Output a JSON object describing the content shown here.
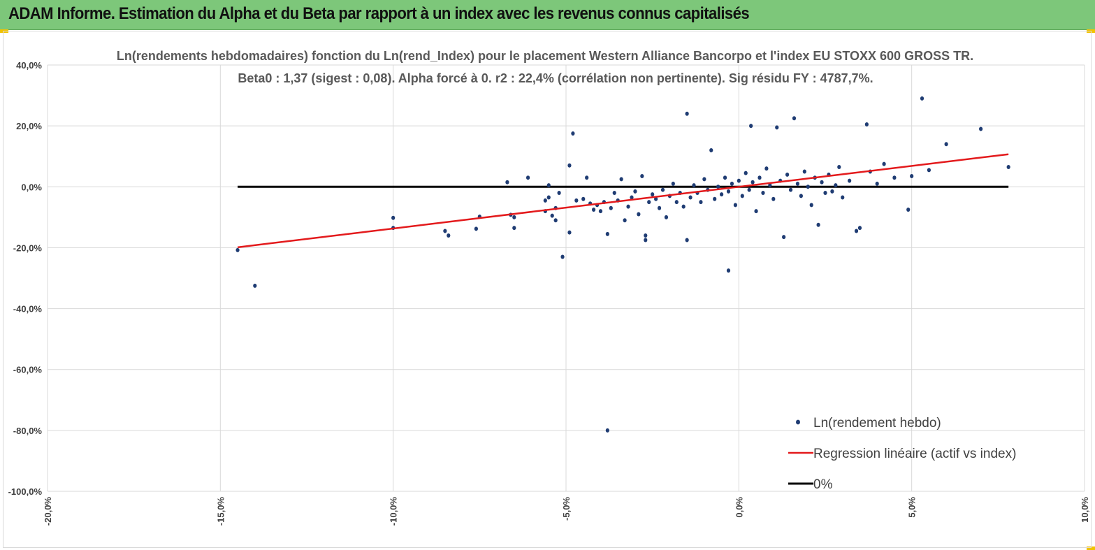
{
  "banner": {
    "title": "ADAM Informe. Estimation du Alpha et du Beta par rapport à un index avec les revenus connus capitalisés"
  },
  "colors": {
    "banner": "#7dc77a",
    "accent_corner": "#f2c200",
    "points": "#1f3c73",
    "regression": "#e31a1c",
    "zero_line": "#000000",
    "grid": "#d9d9d9"
  },
  "chart_data": {
    "type": "scatter",
    "title_line1": "Ln(rendements hebdomadaires) fonction du Ln(rend_Index) pour le placement Western Alliance Bancorpo et l'index EU STOXX 600 GROSS TR.",
    "title_line2": "Beta0 : 1,37 (sigest : 0,08). Alpha forcé à 0. r2 : 22,4% (corrélation non pertinente). Sig résidu FY : 4787,7%.",
    "xlim": [
      -20,
      10
    ],
    "ylim": [
      -100,
      40
    ],
    "x_ticks": [
      "-20,0%",
      "-15,0%",
      "-10,0%",
      "-5,0%",
      "0,0%",
      "5,0%",
      "10,0%"
    ],
    "x_tick_values": [
      -20,
      -15,
      -10,
      -5,
      0,
      5,
      10
    ],
    "y_ticks": [
      "40,0%",
      "20,0%",
      "0,0%",
      "-20,0%",
      "-40,0%",
      "-60,0%",
      "-80,0%",
      "-100,0%"
    ],
    "y_tick_values": [
      40,
      20,
      0,
      -20,
      -40,
      -60,
      -80,
      -100
    ],
    "grid": true,
    "legend_position": "bottom-right",
    "legend": [
      {
        "label": "Ln(rendement hebdo)",
        "kind": "marker"
      },
      {
        "label": "Regression linéaire (actif vs index)",
        "kind": "line-red"
      },
      {
        "label": "0%",
        "kind": "line-black"
      }
    ],
    "regression": {
      "slope": 1.37,
      "x_range": [
        -14.5,
        7.8
      ]
    },
    "zero_line": {
      "x_range": [
        -14.5,
        7.8
      ],
      "y": 0
    },
    "series": [
      {
        "name": "Ln(rendement hebdo)",
        "points": [
          [
            -14.5,
            -20.8
          ],
          [
            -14.0,
            -32.5
          ],
          [
            -10.0,
            -10.2
          ],
          [
            -10.0,
            -13.5
          ],
          [
            -8.5,
            -14.5
          ],
          [
            -8.4,
            -16.0
          ],
          [
            -7.6,
            -13.8
          ],
          [
            -7.5,
            -9.8
          ],
          [
            -6.7,
            1.5
          ],
          [
            -6.6,
            -9.2
          ],
          [
            -6.5,
            -13.5
          ],
          [
            -6.5,
            -10.0
          ],
          [
            -6.1,
            3.0
          ],
          [
            -5.6,
            -8.0
          ],
          [
            -5.6,
            -4.5
          ],
          [
            -5.5,
            -3.5
          ],
          [
            -5.5,
            0.5
          ],
          [
            -5.4,
            -9.5
          ],
          [
            -5.3,
            -11.0
          ],
          [
            -5.3,
            -7.0
          ],
          [
            -5.2,
            -2.0
          ],
          [
            -5.1,
            -23.0
          ],
          [
            -4.9,
            7.0
          ],
          [
            -4.9,
            -15.0
          ],
          [
            -4.8,
            17.5
          ],
          [
            -4.7,
            -4.5
          ],
          [
            -4.5,
            -4.0
          ],
          [
            -4.4,
            3.0
          ],
          [
            -4.3,
            -5.5
          ],
          [
            -4.2,
            -7.5
          ],
          [
            -4.1,
            -6.0
          ],
          [
            -4.0,
            -8.0
          ],
          [
            -3.9,
            -5.0
          ],
          [
            -3.8,
            -15.5
          ],
          [
            -3.8,
            -80.0
          ],
          [
            -3.7,
            -7.0
          ],
          [
            -3.6,
            -2.0
          ],
          [
            -3.5,
            -4.5
          ],
          [
            -3.4,
            2.5
          ],
          [
            -3.3,
            -11.0
          ],
          [
            -3.2,
            -6.5
          ],
          [
            -3.1,
            -3.5
          ],
          [
            -3.0,
            -1.5
          ],
          [
            -2.9,
            -9.0
          ],
          [
            -2.8,
            3.5
          ],
          [
            -2.7,
            -17.5
          ],
          [
            -2.7,
            -16.0
          ],
          [
            -2.6,
            -5.0
          ],
          [
            -2.5,
            -2.5
          ],
          [
            -2.4,
            -4.0
          ],
          [
            -2.3,
            -7.0
          ],
          [
            -2.2,
            -1.0
          ],
          [
            -2.1,
            -10.0
          ],
          [
            -2.0,
            -3.0
          ],
          [
            -1.9,
            1.0
          ],
          [
            -1.8,
            -5.0
          ],
          [
            -1.7,
            -2.0
          ],
          [
            -1.6,
            -6.5
          ],
          [
            -1.5,
            24.0
          ],
          [
            -1.5,
            -17.5
          ],
          [
            -1.4,
            -3.5
          ],
          [
            -1.3,
            0.5
          ],
          [
            -1.2,
            -2.0
          ],
          [
            -1.1,
            -5.0
          ],
          [
            -1.0,
            2.5
          ],
          [
            -0.9,
            -1.0
          ],
          [
            -0.8,
            12.0
          ],
          [
            -0.7,
            -4.0
          ],
          [
            -0.6,
            0.0
          ],
          [
            -0.5,
            -2.5
          ],
          [
            -0.4,
            3.0
          ],
          [
            -0.3,
            -27.5
          ],
          [
            -0.3,
            -1.5
          ],
          [
            -0.2,
            1.0
          ],
          [
            -0.1,
            -6.0
          ],
          [
            0.0,
            2.0
          ],
          [
            0.1,
            -3.0
          ],
          [
            0.2,
            4.5
          ],
          [
            0.3,
            -1.0
          ],
          [
            0.35,
            20.0
          ],
          [
            0.4,
            1.5
          ],
          [
            0.5,
            -8.0
          ],
          [
            0.6,
            3.0
          ],
          [
            0.7,
            -2.0
          ],
          [
            0.8,
            6.0
          ],
          [
            0.9,
            0.5
          ],
          [
            1.0,
            -4.0
          ],
          [
            1.1,
            19.5
          ],
          [
            1.2,
            2.0
          ],
          [
            1.3,
            -16.5
          ],
          [
            1.4,
            4.0
          ],
          [
            1.5,
            -1.0
          ],
          [
            1.6,
            22.5
          ],
          [
            1.7,
            1.0
          ],
          [
            1.8,
            -3.0
          ],
          [
            1.9,
            5.0
          ],
          [
            2.0,
            0.0
          ],
          [
            2.1,
            -6.0
          ],
          [
            2.2,
            3.0
          ],
          [
            2.3,
            -12.5
          ],
          [
            2.4,
            1.5
          ],
          [
            2.5,
            -2.0
          ],
          [
            2.6,
            4.0
          ],
          [
            2.7,
            -1.5
          ],
          [
            2.8,
            0.5
          ],
          [
            2.9,
            6.5
          ],
          [
            3.0,
            -3.5
          ],
          [
            3.2,
            2.0
          ],
          [
            3.4,
            -14.5
          ],
          [
            3.5,
            -13.5
          ],
          [
            3.7,
            20.5
          ],
          [
            3.8,
            5.0
          ],
          [
            4.0,
            1.0
          ],
          [
            4.2,
            7.5
          ],
          [
            4.5,
            3.0
          ],
          [
            4.9,
            -7.5
          ],
          [
            5.0,
            3.5
          ],
          [
            5.3,
            29.0
          ],
          [
            5.5,
            5.5
          ],
          [
            6.0,
            14.0
          ],
          [
            7.0,
            19.0
          ],
          [
            7.8,
            6.5
          ]
        ]
      }
    ]
  }
}
